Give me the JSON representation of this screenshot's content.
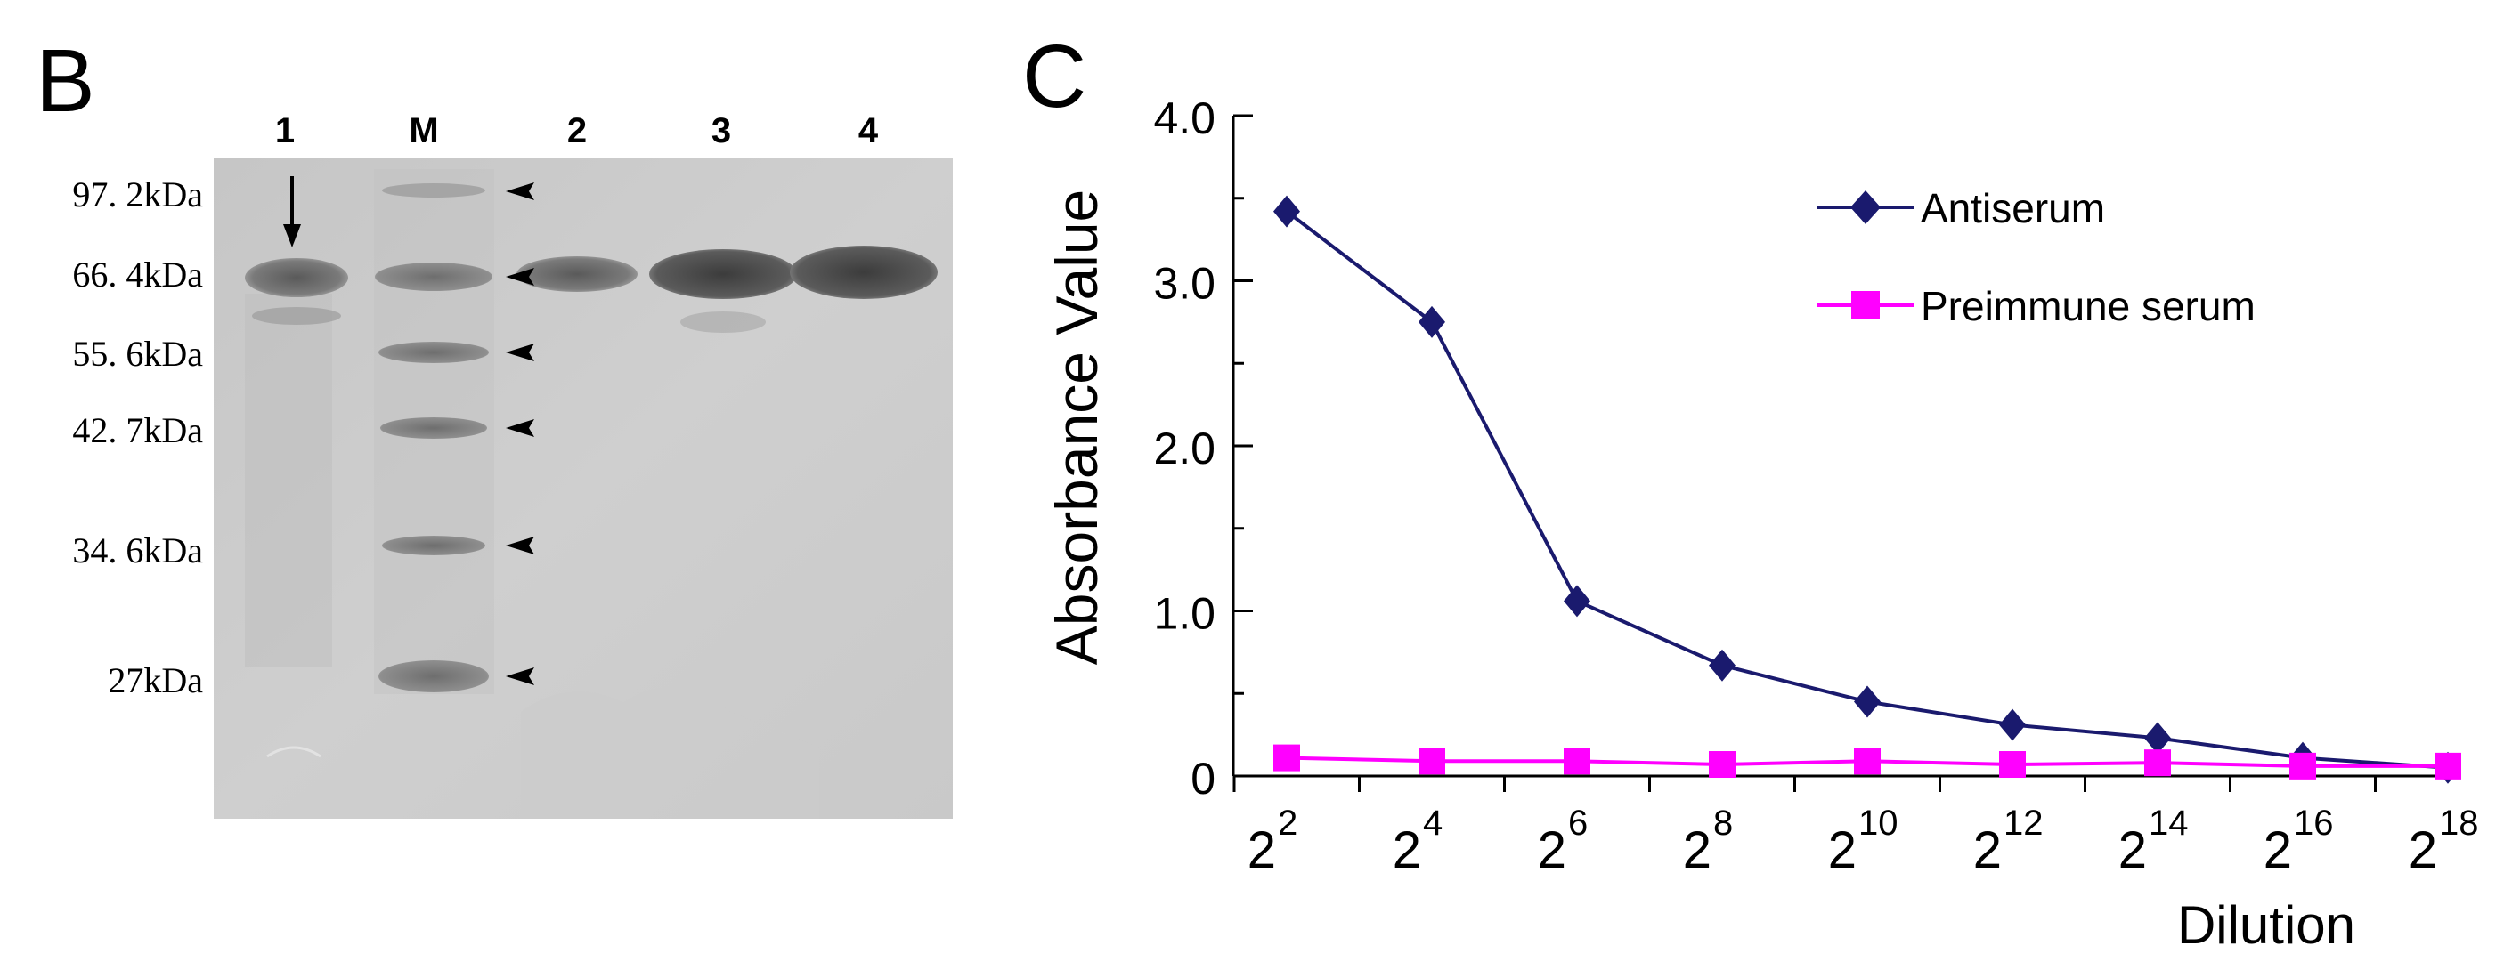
{
  "panel_b": {
    "label": "B",
    "lanes": [
      "1",
      "M",
      "2",
      "3",
      "4"
    ],
    "markers": [
      "97. 2kDa",
      "66. 4kDa",
      "55. 6kDa",
      "42. 7kDa",
      "34. 6kDa",
      "27kDa"
    ]
  },
  "chart_data": {
    "type": "line",
    "panel_label": "C",
    "xlabel": "Dilution",
    "ylabel": "Absorbance Value",
    "x_base": "2",
    "x_exponents": [
      "2",
      "4",
      "6",
      "8",
      "10",
      "12",
      "14",
      "16",
      "18"
    ],
    "ylim": [
      0,
      4.0
    ],
    "yticks": [
      "4.0",
      "3.0",
      "2.0",
      "1.0",
      "0"
    ],
    "ytick_values": [
      4.0,
      3.0,
      2.0,
      1.0,
      0
    ],
    "grid": false,
    "legend_position": "top-right",
    "series": [
      {
        "name": "Antiserum",
        "color": "#1a1a6e",
        "marker": "diamond",
        "values": [
          3.42,
          2.75,
          1.06,
          0.67,
          0.45,
          0.31,
          0.23,
          0.11,
          0.05
        ]
      },
      {
        "name": "Preimmune serum",
        "color": "#ff00ff",
        "marker": "square",
        "values": [
          0.11,
          0.09,
          0.09,
          0.07,
          0.09,
          0.07,
          0.08,
          0.06,
          0.06
        ]
      }
    ]
  }
}
